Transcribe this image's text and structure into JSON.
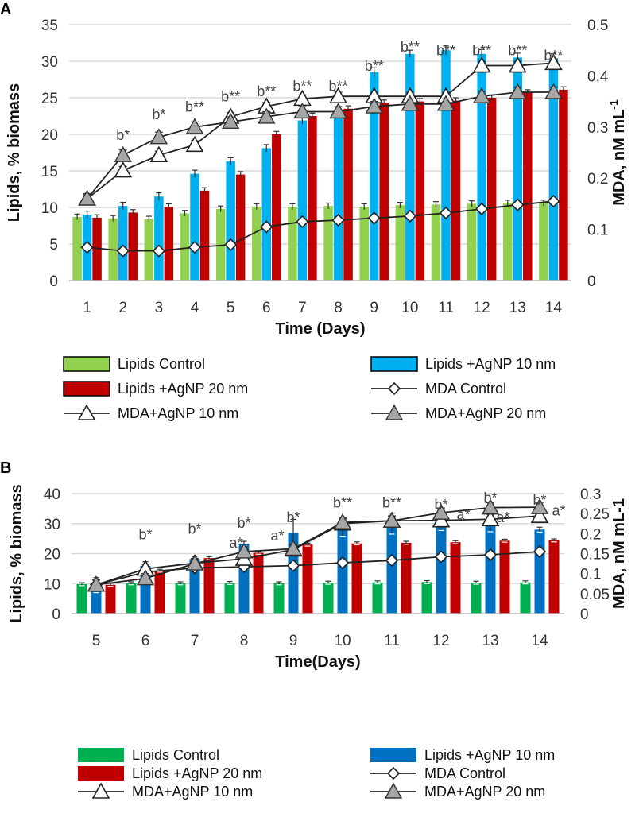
{
  "colors": {
    "control_a": "#92D050",
    "agnp10_a": "#00B0F0",
    "agnp20_a": "#C00000",
    "control_b": "#00B050",
    "agnp10_b": "#0070C0",
    "agnp20_b": "#C00000",
    "mda20_marker": "#A6A6A6",
    "grid": "#D9D9D9"
  },
  "chart_data": [
    {
      "panel": "A",
      "type": "bar",
      "xlabel": "Time (Days)",
      "ylabel": "Lipids, % biomass",
      "y2label": "MDA, nM mL",
      "y2label_sup": "-1",
      "categories": [
        "1",
        "2",
        "3",
        "4",
        "5",
        "6",
        "7",
        "8",
        "9",
        "10",
        "11",
        "12",
        "13",
        "14"
      ],
      "ylim": [
        0,
        35
      ],
      "yticks": [
        0,
        5,
        10,
        15,
        20,
        25,
        30,
        35
      ],
      "y2lim": [
        0,
        0.5
      ],
      "y2ticks": [
        "0",
        "0.1",
        "0.2",
        "0.3",
        "0.4",
        "0.5"
      ],
      "series": [
        {
          "name": "Lipids Control",
          "kind": "bar",
          "values": [
            8.7,
            8.5,
            8.4,
            9.2,
            9.8,
            10.1,
            10.1,
            10.2,
            10.1,
            10.3,
            10.4,
            10.5,
            10.6,
            10.6
          ],
          "err": [
            0.4,
            0.4,
            0.4,
            0.4,
            0.4,
            0.4,
            0.4,
            0.4,
            0.4,
            0.4,
            0.4,
            0.4,
            0.4,
            0.4
          ]
        },
        {
          "name": "Lipids +AgNP 10 nm",
          "kind": "bar",
          "values": [
            9.0,
            10.2,
            11.5,
            14.6,
            16.3,
            18.1,
            21.9,
            23.2,
            28.5,
            31.0,
            31.5,
            31.0,
            30.5,
            30.4
          ],
          "err": [
            0.5,
            0.5,
            0.5,
            0.5,
            0.5,
            0.5,
            0.5,
            0.5,
            0.6,
            0.5,
            0.6,
            0.6,
            0.6,
            0.6
          ]
        },
        {
          "name": "Lipids +AgNP 20 nm",
          "kind": "bar",
          "values": [
            8.6,
            9.3,
            10.1,
            12.3,
            14.5,
            20.0,
            22.5,
            23.5,
            24.3,
            24.5,
            24.6,
            25.0,
            25.7,
            26.1
          ],
          "err": [
            0.4,
            0.4,
            0.4,
            0.4,
            0.4,
            0.4,
            0.4,
            0.4,
            0.4,
            0.4,
            0.4,
            0.4,
            0.4,
            0.4
          ]
        },
        {
          "name": "MDA Control",
          "kind": "line",
          "marker": "diamond",
          "values": [
            0.065,
            0.058,
            0.058,
            0.065,
            0.07,
            0.105,
            0.115,
            0.118,
            0.122,
            0.126,
            0.132,
            0.14,
            0.148,
            0.155
          ]
        },
        {
          "name": "MDA+AgNP 10 nm",
          "kind": "line",
          "marker": "triangle-open",
          "values": [
            0.16,
            0.215,
            0.245,
            0.265,
            0.32,
            0.34,
            0.355,
            0.36,
            0.36,
            0.36,
            0.36,
            0.42,
            0.42,
            0.425
          ],
          "err": [
            0.008,
            0.008,
            0.008,
            0.008,
            0.008,
            0.008,
            0.008,
            0.008,
            0.008,
            0.008,
            0.008,
            0.008,
            0.008,
            0.008
          ]
        },
        {
          "name": "MDA+AgNP 20 nm",
          "kind": "line",
          "marker": "triangle-grey",
          "values": [
            0.16,
            0.245,
            0.28,
            0.3,
            0.31,
            0.32,
            0.33,
            0.33,
            0.34,
            0.345,
            0.345,
            0.36,
            0.368,
            0.368
          ],
          "err": [
            0.01,
            0.01,
            0.01,
            0.01,
            0.01,
            0.01,
            0.01,
            0.01,
            0.01,
            0.01,
            0.01,
            0.01,
            0.01,
            0.01
          ]
        }
      ],
      "annotations": [
        {
          "cat": "2",
          "text": "b*",
          "y2": 0.275
        },
        {
          "cat": "3",
          "text": "b*",
          "y2": 0.315
        },
        {
          "cat": "4",
          "text": "b**",
          "y2": 0.33
        },
        {
          "cat": "5",
          "text": "b**",
          "y2": 0.35
        },
        {
          "cat": "6",
          "text": "b**",
          "y2": 0.36
        },
        {
          "cat": "7",
          "text": "b**",
          "y2": 0.37
        },
        {
          "cat": "8",
          "text": "b**",
          "y2": 0.37
        },
        {
          "cat": "9",
          "text": "b**",
          "y2": 0.41
        },
        {
          "cat": "10",
          "text": "b**",
          "y2": 0.447
        },
        {
          "cat": "11",
          "text": "b**",
          "y2": 0.44
        },
        {
          "cat": "12",
          "text": "b**",
          "y2": 0.44
        },
        {
          "cat": "13",
          "text": "b**",
          "y2": 0.44
        },
        {
          "cat": "14",
          "text": "b**",
          "y2": 0.43
        }
      ],
      "legend": [
        [
          "Lipids Control",
          "Lipids +AgNP 10 nm"
        ],
        [
          "Lipids +AgNP 20 nm",
          "MDA Control"
        ],
        [
          "MDA+AgNP 10 nm",
          "MDA+AgNP 20 nm"
        ]
      ]
    },
    {
      "panel": "B",
      "type": "bar",
      "xlabel": "Time(Days)",
      "ylabel": "Lipids, % biomass",
      "y2label": "MDA, nM mL-1",
      "categories": [
        "5",
        "6",
        "7",
        "8",
        "9",
        "10",
        "11",
        "12",
        "13",
        "14"
      ],
      "ylim": [
        0,
        40
      ],
      "yticks": [
        0,
        10,
        20,
        30,
        40
      ],
      "y2lim": [
        0,
        0.3
      ],
      "y2ticks": [
        "0",
        "0.05",
        "0.1",
        "0.15",
        "0.2",
        "0.25",
        "0.3"
      ],
      "series": [
        {
          "name": "Lipids Control",
          "kind": "bar",
          "values": [
            9.8,
            10.1,
            10.1,
            10.2,
            10.1,
            10.3,
            10.4,
            10.5,
            10.3,
            10.4
          ],
          "err": [
            0.5,
            0.5,
            0.5,
            0.5,
            0.5,
            0.5,
            0.5,
            0.5,
            0.5,
            0.5
          ]
        },
        {
          "name": "Lipids +AgNP 10 nm",
          "kind": "bar",
          "values": [
            9.5,
            15.9,
            18.2,
            23.3,
            26.9,
            28.0,
            30.0,
            30.2,
            30.1,
            28.0
          ],
          "err": [
            2.5,
            1.4,
            0.8,
            0.8,
            4.5,
            2.2,
            3.5,
            2.5,
            2.8,
            0.8
          ]
        },
        {
          "name": "Lipids +AgNP 20 nm",
          "kind": "bar",
          "values": [
            9.6,
            14.3,
            18.5,
            20.3,
            23.0,
            23.4,
            23.6,
            23.8,
            24.3,
            24.4
          ],
          "err": [
            0.5,
            0.5,
            0.5,
            0.5,
            0.5,
            0.5,
            0.5,
            0.5,
            0.5,
            0.5
          ]
        },
        {
          "name": "MDA Control",
          "kind": "line",
          "marker": "diamond",
          "values": [
            0.072,
            0.104,
            0.114,
            0.117,
            0.12,
            0.127,
            0.133,
            0.142,
            0.147,
            0.155
          ]
        },
        {
          "name": "MDA+AgNP 10 nm",
          "kind": "line",
          "marker": "triangle-open",
          "values": [
            0.072,
            0.112,
            0.126,
            0.137,
            0.16,
            0.225,
            0.232,
            0.233,
            0.236,
            0.244
          ],
          "err": [
            0.012,
            0.012,
            0.012,
            0.012,
            0.012,
            0.012,
            0.012,
            0.012,
            0.012,
            0.012
          ]
        },
        {
          "name": "MDA+AgNP 20 nm",
          "kind": "line",
          "marker": "triangle-grey",
          "values": [
            0.072,
            0.088,
            0.125,
            0.155,
            0.162,
            0.228,
            0.232,
            0.252,
            0.265,
            0.266
          ],
          "err": [
            0.012,
            0.012,
            0.012,
            0.012,
            0.012,
            0.012,
            0.012,
            0.012,
            0.012,
            0.012
          ]
        }
      ],
      "annotations": [
        {
          "cat": "6",
          "text": "b*",
          "y2": 0.186
        },
        {
          "cat": "7",
          "text": "b*",
          "y2": 0.2
        },
        {
          "cat": "8",
          "text": "b*",
          "y2": 0.215
        },
        {
          "cat": "8",
          "text": "a*",
          "y2": 0.165,
          "dx": -10
        },
        {
          "cat": "9",
          "text": "b*",
          "y2": 0.228
        },
        {
          "cat": "9",
          "text": "a*",
          "y2": 0.183,
          "dx": -20
        },
        {
          "cat": "10",
          "text": "b**",
          "y2": 0.265
        },
        {
          "cat": "11",
          "text": "b**",
          "y2": 0.265
        },
        {
          "cat": "12",
          "text": "b*",
          "y2": 0.26
        },
        {
          "cat": "12",
          "text": "a*",
          "y2": 0.235,
          "dx": 28
        },
        {
          "cat": "13",
          "text": "b*",
          "y2": 0.277
        },
        {
          "cat": "13",
          "text": "a*",
          "y2": 0.228,
          "dx": 16
        },
        {
          "cat": "14",
          "text": "b*",
          "y2": 0.272
        },
        {
          "cat": "14",
          "text": "a*",
          "y2": 0.245,
          "dx": 24
        }
      ],
      "legend": [
        [
          "Lipids Control",
          "Lipids +AgNP 10 nm"
        ],
        [
          "Lipids +AgNP 20 nm",
          "MDA Control"
        ],
        [
          "MDA+AgNP 10 nm",
          "MDA+AgNP 20 nm"
        ]
      ]
    }
  ]
}
